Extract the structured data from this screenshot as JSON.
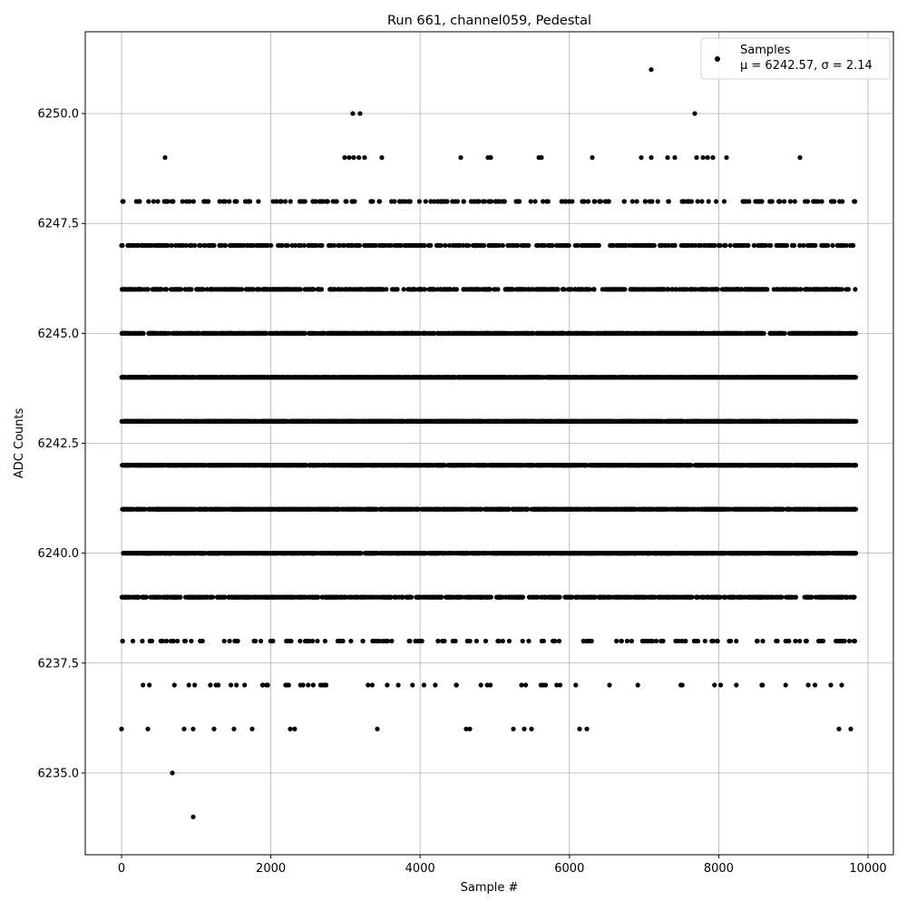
{
  "chart_data": {
    "type": "scatter",
    "title": "Run 661, channel059, Pedestal",
    "xlabel": "Sample #",
    "ylabel": "ADC Counts",
    "xlim": [
      -486,
      10340
    ],
    "ylim": [
      6233.14,
      6251.86
    ],
    "xticks": [
      0,
      2000,
      4000,
      6000,
      8000,
      10000
    ],
    "xtick_labels": [
      "0",
      "2000",
      "4000",
      "6000",
      "8000",
      "10000"
    ],
    "yticks": [
      6235.0,
      6237.5,
      6240.0,
      6242.5,
      6245.0,
      6247.5,
      6250.0
    ],
    "ytick_labels": [
      "6235.0",
      "6237.5",
      "6240.0",
      "6242.5",
      "6245.0",
      "6247.5",
      "6250.0"
    ],
    "grid": true,
    "legend": {
      "placement": "top-right",
      "entries": [
        {
          "label": "Samples",
          "stats": "μ = 6242.57, σ = 2.14"
        }
      ]
    },
    "marker_color": "#000000",
    "grid_color": "#b0b0b0",
    "sample_range": [
      0,
      9840
    ],
    "level_counts_approx": {
      "6237": 60,
      "6238": 150,
      "6239": 800,
      "6240": 1200,
      "6241": 1300,
      "6242": 1400,
      "6243": 2200,
      "6244": 2000,
      "6245": 1200,
      "6246": 600,
      "6247": 500,
      "6248": 200
    },
    "outliers": [
      [
        7096,
        6251
      ],
      [
        3098,
        6250
      ],
      [
        3195,
        6250
      ],
      [
        7679,
        6250
      ],
      [
        583,
        6249
      ],
      [
        2989,
        6249
      ],
      [
        3050,
        6249
      ],
      [
        3110,
        6249
      ],
      [
        3180,
        6249
      ],
      [
        3256,
        6249
      ],
      [
        3487,
        6249
      ],
      [
        4544,
        6249
      ],
      [
        4909,
        6249
      ],
      [
        4945,
        6249
      ],
      [
        5590,
        6249
      ],
      [
        5626,
        6249
      ],
      [
        6306,
        6249
      ],
      [
        6962,
        6249
      ],
      [
        7096,
        6249
      ],
      [
        7315,
        6249
      ],
      [
        7412,
        6249
      ],
      [
        7703,
        6249
      ],
      [
        7790,
        6249
      ],
      [
        7850,
        6249
      ],
      [
        7922,
        6249
      ],
      [
        8104,
        6249
      ],
      [
        9088,
        6249
      ],
      [
        0,
        6236
      ],
      [
        352,
        6236
      ],
      [
        838,
        6236
      ],
      [
        960,
        6236
      ],
      [
        1239,
        6236
      ],
      [
        1507,
        6236
      ],
      [
        1750,
        6236
      ],
      [
        2260,
        6236
      ],
      [
        2320,
        6236
      ],
      [
        3426,
        6236
      ],
      [
        4617,
        6236
      ],
      [
        4666,
        6236
      ],
      [
        5249,
        6236
      ],
      [
        5395,
        6236
      ],
      [
        5492,
        6236
      ],
      [
        6136,
        6236
      ],
      [
        6233,
        6236
      ],
      [
        9611,
        6236
      ],
      [
        9769,
        6236
      ],
      [
        680,
        6235
      ],
      [
        960,
        6234
      ]
    ]
  }
}
